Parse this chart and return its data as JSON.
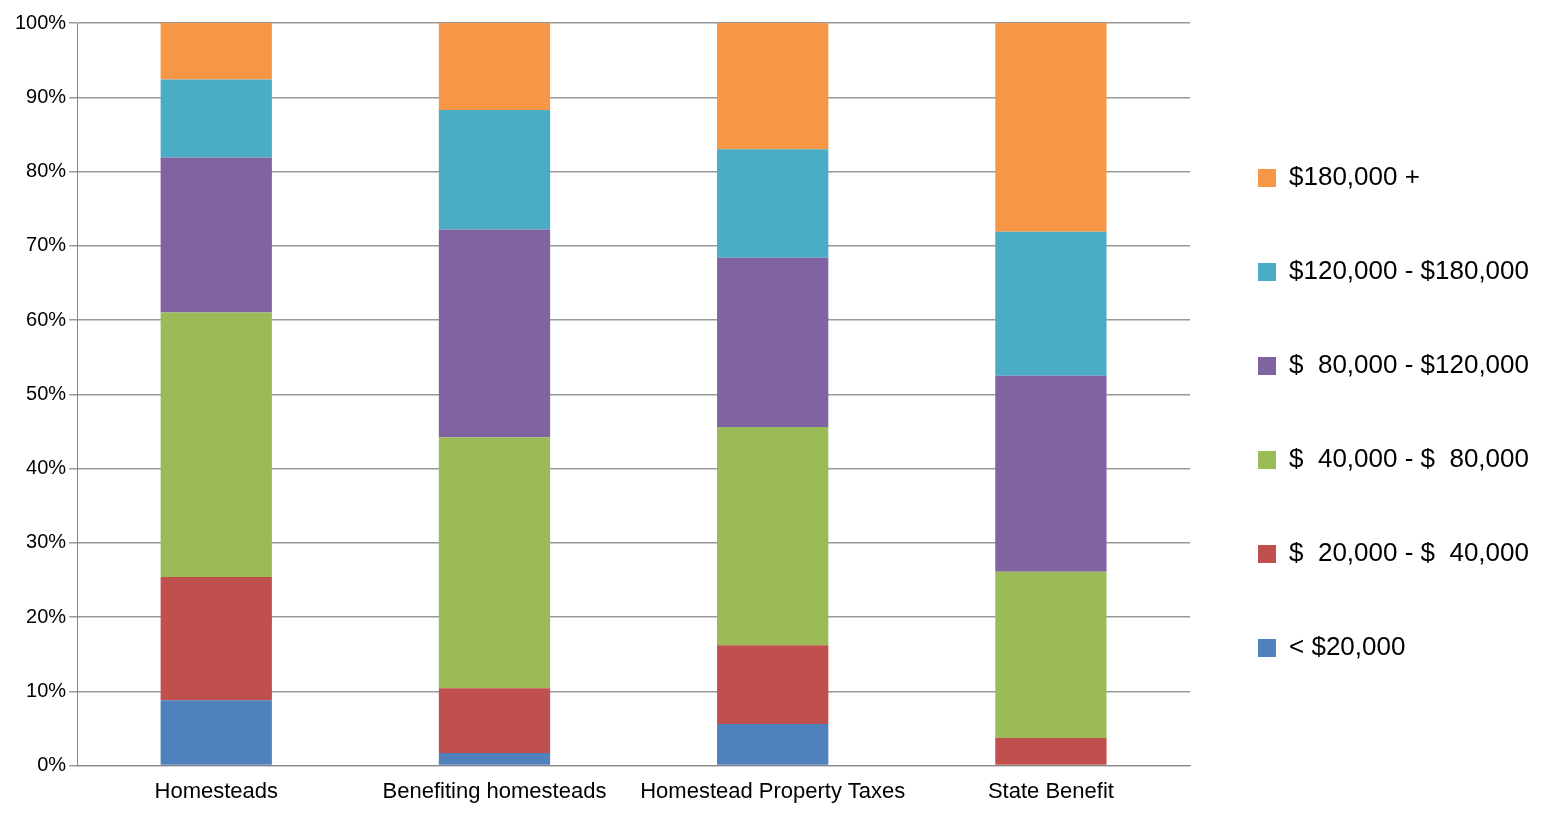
{
  "chart_data": {
    "type": "bar",
    "stacked": true,
    "categories": [
      "Homesteads",
      "Benefiting homesteads",
      "Homestead Property Taxes",
      "State Benefit"
    ],
    "series": [
      {
        "name": "< $20,000",
        "color": "#4f81bd",
        "values": [
          8.8,
          1.7,
          5.6,
          0
        ]
      },
      {
        "name": "$  20,000 - $  40,000",
        "color": "#c0504d",
        "values": [
          16.6,
          8.7,
          10.6,
          3.7
        ]
      },
      {
        "name": "$  40,000 - $  80,000",
        "color": "#9bbb59",
        "values": [
          35.6,
          33.8,
          29.4,
          22.4
        ]
      },
      {
        "name": "$  80,000 - $120,000",
        "color": "#8064a2",
        "values": [
          20.9,
          28.0,
          22.8,
          26.4
        ]
      },
      {
        "name": "$120,000 - $180,000",
        "color": "#4bacc6",
        "values": [
          10.5,
          16.1,
          14.6,
          19.4
        ]
      },
      {
        "name": "$180,000 +",
        "color": "#f79646",
        "values": [
          7.6,
          11.7,
          17.0,
          28.1
        ]
      }
    ],
    "ylim": [
      0,
      100
    ],
    "yticks": [
      {
        "value": 0,
        "label": "0%"
      },
      {
        "value": 10,
        "label": "10%"
      },
      {
        "value": 20,
        "label": "20%"
      },
      {
        "value": 30,
        "label": "30%"
      },
      {
        "value": 40,
        "label": "40%"
      },
      {
        "value": 50,
        "label": "50%"
      },
      {
        "value": 60,
        "label": "60%"
      },
      {
        "value": 70,
        "label": "70%"
      },
      {
        "value": 80,
        "label": "80%"
      },
      {
        "value": 90,
        "label": "90%"
      },
      {
        "value": 100,
        "label": "100%"
      }
    ],
    "grid": "y",
    "legend": "right"
  }
}
